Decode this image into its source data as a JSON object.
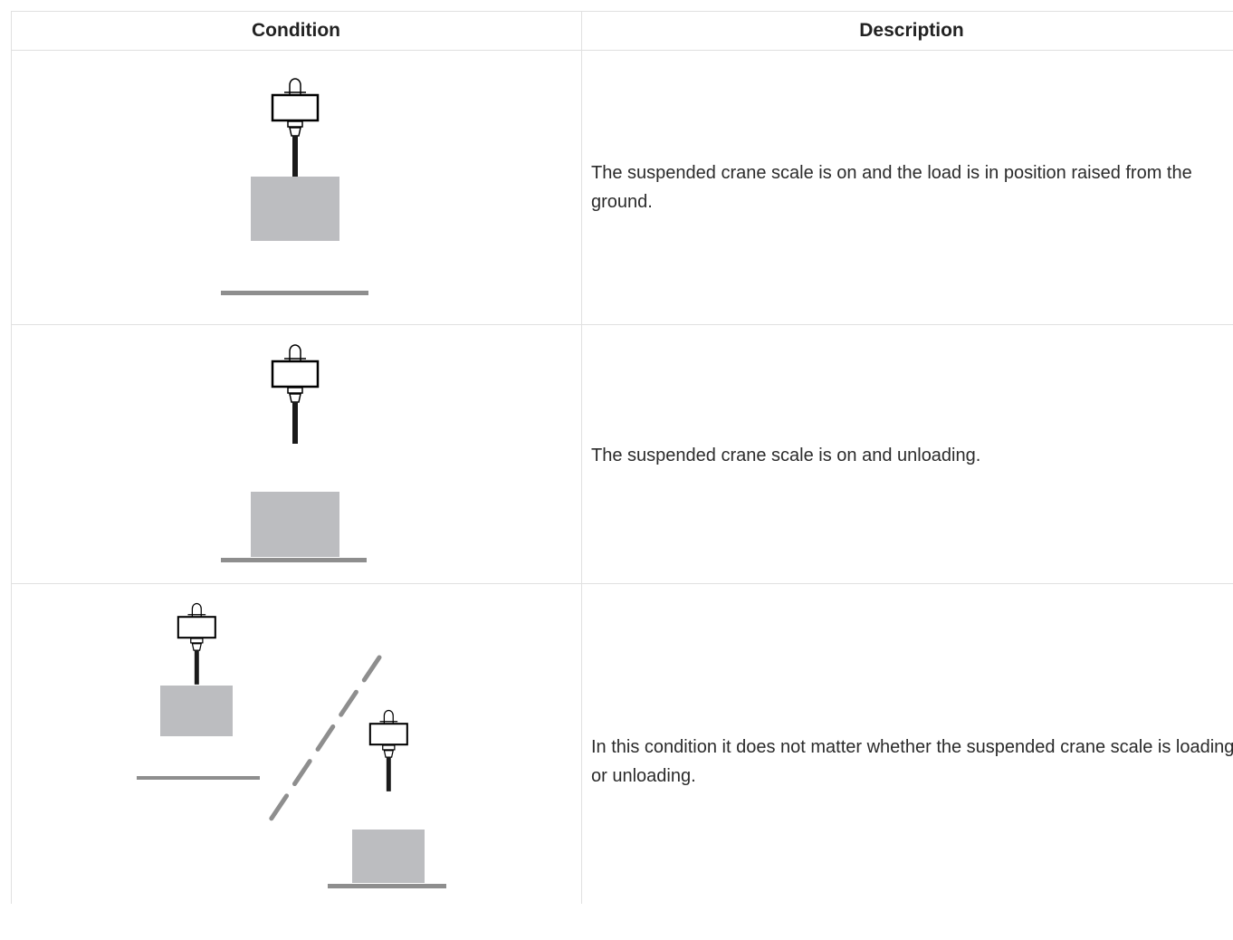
{
  "table": {
    "headers": [
      "Condition",
      "Description"
    ],
    "rows": [
      {
        "description": "The suspended crane scale is on and the load is in position raised from the ground."
      },
      {
        "description": "The suspended crane scale is on and unloading."
      },
      {
        "description": "In this condition it does not matter whether the suspended crane scale is loading or unloading."
      }
    ]
  }
}
